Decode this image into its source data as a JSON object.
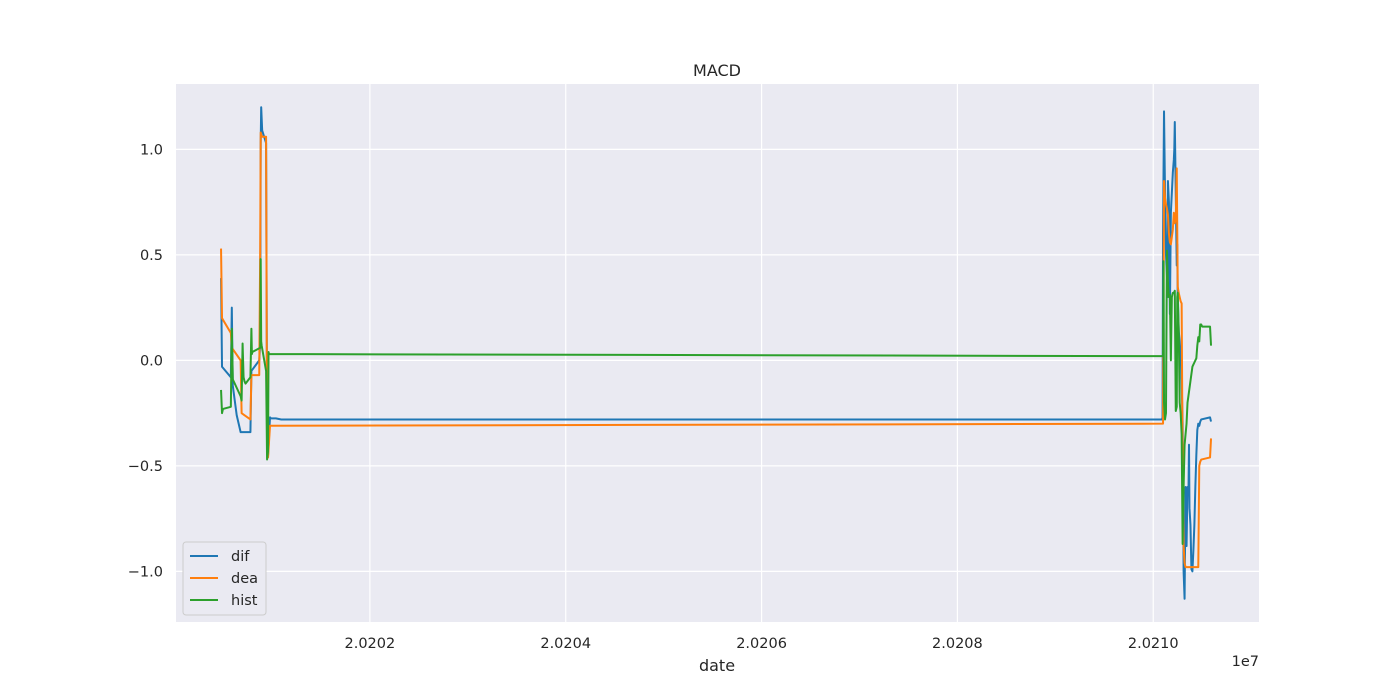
{
  "chart_data": {
    "type": "line",
    "title": "MACD",
    "xlabel": "date",
    "ylabel": "",
    "x_offset_text": "1e7",
    "xlim": [
      20200020,
      20211080
    ],
    "ylim": [
      -1.24,
      1.31
    ],
    "x_ticks": [
      {
        "value": 20202000,
        "label": "2.0202"
      },
      {
        "value": 20204000,
        "label": "2.0204"
      },
      {
        "value": 20206000,
        "label": "2.0206"
      },
      {
        "value": 20208000,
        "label": "2.0208"
      },
      {
        "value": 20210000,
        "label": "2.0210"
      }
    ],
    "y_ticks": [
      {
        "value": 1.0,
        "label": "1.0"
      },
      {
        "value": 0.5,
        "label": "0.5"
      },
      {
        "value": 0.0,
        "label": "0.0"
      },
      {
        "value": -0.5,
        "label": "−0.5"
      },
      {
        "value": -1.0,
        "label": "−1.0"
      }
    ],
    "grid": true,
    "legend_position": "lower-left",
    "series": [
      {
        "name": "dif",
        "color": "#1f77b4",
        "x": [
          20200480,
          20200490,
          20200580,
          20200590,
          20200600,
          20200640,
          20200680,
          20200690,
          20200700,
          20200780,
          20200790,
          20200870,
          20200880,
          20200885,
          20200890,
          20200900,
          20200940,
          20200950,
          20200960,
          20200980,
          20200990,
          20201000,
          20201010,
          20201020,
          20201030,
          20201040,
          20201095,
          20201100,
          20201150,
          20201180,
          20210090,
          20210095,
          20210100,
          20210110,
          20210120,
          20210130,
          20210140,
          20210145,
          20210150,
          20210160,
          20210170,
          20210180,
          20210200,
          20210210,
          20210215,
          20210220,
          20210240,
          20210245,
          20210250,
          20210260,
          20210270,
          20210280,
          20210290,
          20210300,
          20210310,
          20210320,
          20210330,
          20210340,
          20210350,
          20210360,
          20210365,
          20210370,
          20210380,
          20210390,
          20210400,
          20210410,
          20210420,
          20210430,
          20210440,
          20210450,
          20210460,
          20210470,
          20210480,
          20210490,
          20210580,
          20210590
        ],
        "values": [
          0.39,
          -0.03,
          -0.08,
          0.25,
          -0.12,
          -0.26,
          -0.34,
          -0.34,
          -0.34,
          -0.34,
          -0.05,
          0.0,
          0.08,
          1.03,
          1.2,
          1.09,
          1.03,
          -0.27,
          -0.45,
          -0.27,
          -0.275,
          -0.275,
          -0.275,
          -0.275,
          -0.275,
          -0.275,
          -0.28,
          -0.28,
          -0.28,
          -0.28,
          -0.28,
          -0.27,
          0.6,
          1.18,
          0.8,
          0.5,
          0.4,
          0.3,
          0.85,
          0.75,
          0.22,
          0.7,
          0.89,
          0.95,
          1.0,
          1.13,
          0.45,
          0.55,
          0.3,
          0.14,
          0.09,
          0.02,
          -0.1,
          -0.3,
          -1.0,
          -1.13,
          -0.6,
          -0.88,
          -0.6,
          -0.62,
          -0.4,
          -0.7,
          -0.78,
          -0.99,
          -1.0,
          -0.9,
          -0.78,
          -0.6,
          -0.45,
          -0.33,
          -0.3,
          -0.31,
          -0.29,
          -0.28,
          -0.27,
          -0.29
        ]
      },
      {
        "name": "dea",
        "color": "#ff7f0e",
        "x": [
          20200480,
          20200490,
          20200580,
          20200590,
          20200680,
          20200690,
          20200780,
          20200790,
          20200870,
          20200880,
          20200885,
          20200890,
          20200900,
          20200940,
          20200950,
          20200960,
          20200980,
          20210090,
          20210100,
          20210110,
          20210120,
          20210130,
          20210140,
          20210150,
          20210160,
          20210170,
          20210180,
          20210200,
          20210210,
          20210220,
          20210230,
          20210240,
          20210250,
          20210260,
          20210270,
          20210280,
          20210290,
          20210300,
          20210310,
          20210320,
          20210330,
          20210340,
          20210350,
          20210360,
          20210370,
          20210380,
          20210390,
          20210400,
          20210410,
          20210420,
          20210430,
          20210440,
          20210450,
          20210460,
          20210470,
          20210480,
          20210490,
          20210580,
          20210590
        ],
        "values": [
          0.53,
          0.2,
          0.13,
          0.06,
          0.0,
          -0.25,
          -0.28,
          -0.07,
          -0.07,
          0.53,
          1.08,
          1.07,
          1.06,
          1.06,
          -0.43,
          -0.46,
          -0.31,
          -0.3,
          -0.3,
          0.85,
          0.77,
          0.74,
          0.72,
          0.69,
          0.6,
          0.56,
          0.55,
          0.62,
          0.7,
          0.65,
          0.67,
          0.91,
          0.35,
          0.32,
          0.3,
          0.28,
          0.27,
          -0.5,
          -0.88,
          -0.96,
          -0.98,
          -0.98,
          -0.98,
          -0.98,
          -0.98,
          -0.98,
          -0.98,
          -0.98,
          -0.98,
          -0.98,
          -0.98,
          -0.98,
          -0.98,
          -0.98,
          -0.5,
          -0.48,
          -0.47,
          -0.46,
          -0.37
        ]
      },
      {
        "name": "hist",
        "color": "#2ca02c",
        "x": [
          20200480,
          20200490,
          20200500,
          20200580,
          20200590,
          20200600,
          20200680,
          20200690,
          20200700,
          20200710,
          20200720,
          20200730,
          20200780,
          20200790,
          20200795,
          20200800,
          20200880,
          20200885,
          20200890,
          20200895,
          20200940,
          20200950,
          20200960,
          20200965,
          20200970,
          20210090,
          20210100,
          20210105,
          20210110,
          20210120,
          20210130,
          20210140,
          20210150,
          20210160,
          20210170,
          20210180,
          20210190,
          20210200,
          20210210,
          20210220,
          20210230,
          20210240,
          20210245,
          20210250,
          20210260,
          20210270,
          20210280,
          20210290,
          20210300,
          20210310,
          20210320,
          20210330,
          20210340,
          20210350,
          20210400,
          20210410,
          20210420,
          20210430,
          20210440,
          20210450,
          20210460,
          20210470,
          20210480,
          20210490,
          20210500,
          20210580,
          20210590
        ],
        "values": [
          -0.14,
          -0.25,
          -0.23,
          -0.22,
          0.15,
          -0.09,
          -0.17,
          -0.19,
          0.08,
          -0.08,
          -0.1,
          -0.11,
          -0.08,
          0.15,
          0.03,
          0.04,
          0.06,
          0.48,
          0.09,
          0.07,
          -0.05,
          -0.47,
          -0.43,
          0.04,
          0.03,
          0.02,
          0.02,
          0.47,
          -0.2,
          -0.28,
          -0.25,
          0.52,
          0.37,
          0.3,
          0.31,
          0.0,
          0.3,
          0.32,
          0.32,
          0.33,
          -0.24,
          -0.22,
          0.3,
          0.32,
          0.15,
          -0.2,
          -0.25,
          -0.35,
          -0.87,
          -0.6,
          -0.4,
          -0.35,
          -0.3,
          -0.2,
          -0.03,
          -0.02,
          -0.01,
          0.0,
          0.01,
          0.07,
          0.11,
          0.09,
          0.17,
          0.17,
          0.16,
          0.16,
          0.07
        ]
      }
    ]
  }
}
